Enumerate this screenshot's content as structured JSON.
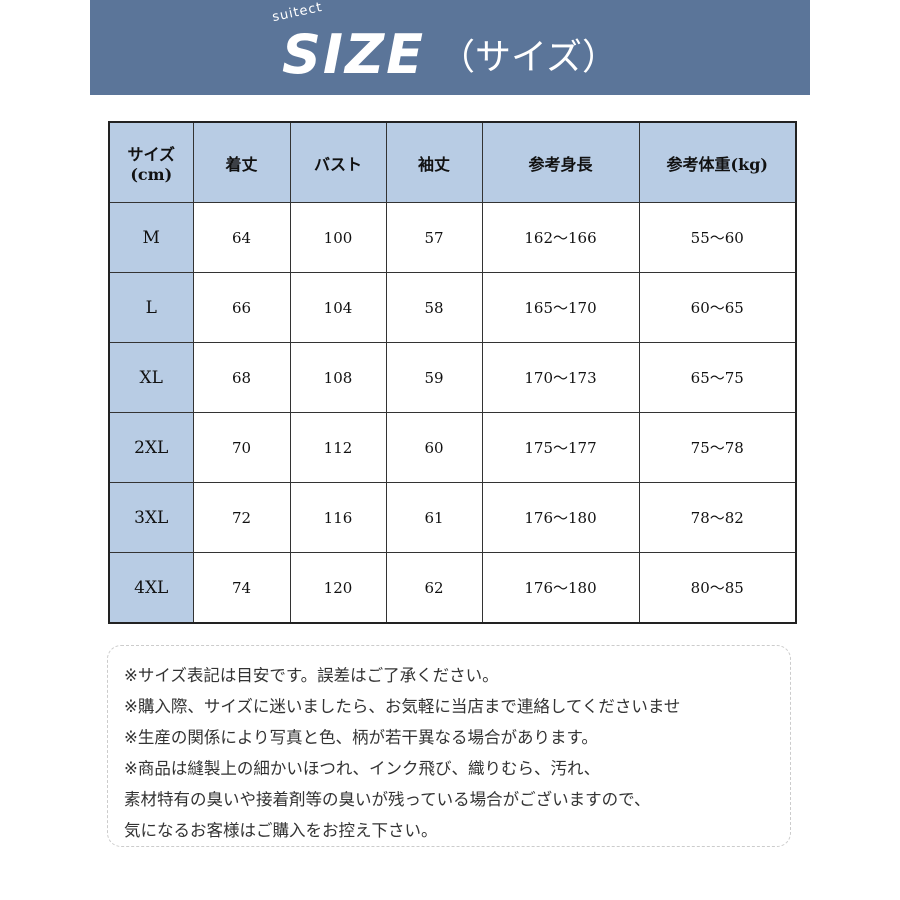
{
  "banner": {
    "logo_sub": "suitect",
    "logo": "SIZE",
    "title": "（サイズ）"
  },
  "table": {
    "headers": [
      "サイズ\n(cm)",
      "着丈",
      "バスト",
      "袖丈",
      "参考身長",
      "参考体重(kg)"
    ],
    "rows": [
      [
        "M",
        "64",
        "100",
        "57",
        "162～166",
        "55～60"
      ],
      [
        "L",
        "66",
        "104",
        "58",
        "165～170",
        "60～65"
      ],
      [
        "XL",
        "68",
        "108",
        "59",
        "170～173",
        "65～75"
      ],
      [
        "2XL",
        "70",
        "112",
        "60",
        "175～177",
        "75～78"
      ],
      [
        "3XL",
        "72",
        "116",
        "61",
        "176～180",
        "78～82"
      ],
      [
        "4XL",
        "74",
        "120",
        "62",
        "176～180",
        "80～85"
      ]
    ]
  },
  "notes": [
    "※サイズ表記は目安です。誤差はご了承ください。",
    "※購入際、サイズに迷いましたら、お気軽に当店まで連絡してくださいませ",
    "※生産の関係により写真と色、柄が若干異なる場合があります。",
    "※商品は縫製上の細かいほつれ、インク飛び、織りむら、汚れ、",
    "素材特有の臭いや接着剤等の臭いが残っている場合がございますので、",
    "気になるお客様はご購入をお控え下さい。"
  ]
}
